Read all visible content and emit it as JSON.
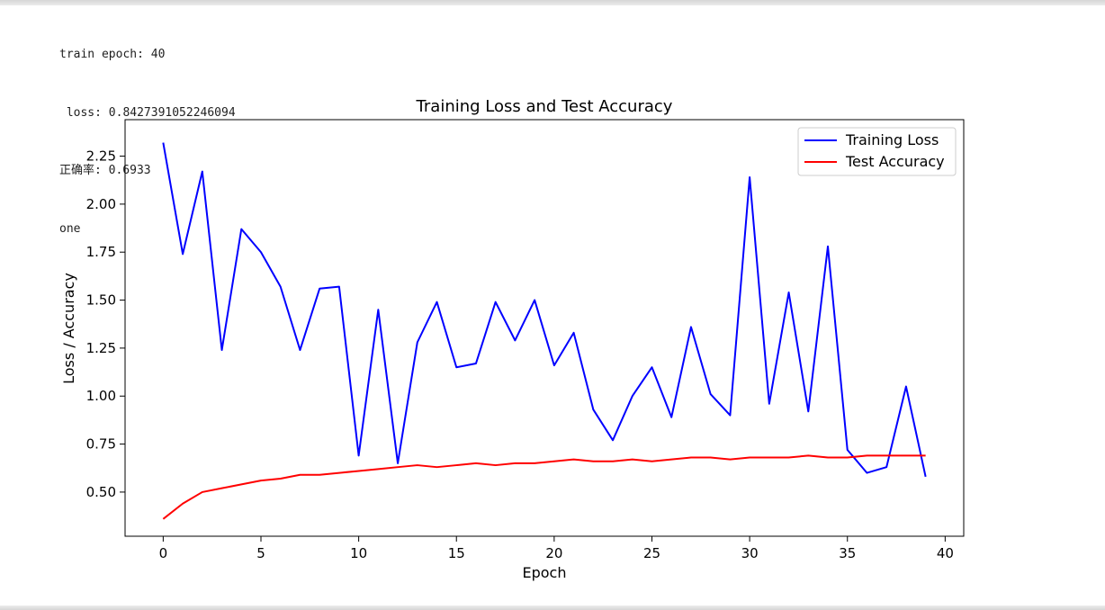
{
  "console": {
    "line1": "train epoch: 40",
    "line2": " loss: 0.8427391052246094",
    "line3": "正确率: 0.6933",
    "line4": "one"
  },
  "colors": {
    "training_loss": "#0000ff",
    "test_accuracy": "#ff0000"
  },
  "chart_data": {
    "type": "line",
    "title": "Training Loss and Test Accuracy",
    "xlabel": "Epoch",
    "ylabel": "Loss / Accuracy",
    "xlim": [
      -1.95,
      40.95
    ],
    "ylim": [
      0.27,
      2.44
    ],
    "xticks": [
      0,
      5,
      10,
      15,
      20,
      25,
      30,
      35,
      40
    ],
    "yticks": [
      0.5,
      0.75,
      1.0,
      1.25,
      1.5,
      1.75,
      2.0,
      2.25
    ],
    "ytick_labels": [
      "0.50",
      "0.75",
      "1.00",
      "1.25",
      "1.50",
      "1.75",
      "2.00",
      "2.25"
    ],
    "legend": "top-right",
    "grid": false,
    "x": [
      0,
      1,
      2,
      3,
      4,
      5,
      6,
      7,
      8,
      9,
      10,
      11,
      12,
      13,
      14,
      15,
      16,
      17,
      18,
      19,
      20,
      21,
      22,
      23,
      24,
      25,
      26,
      27,
      28,
      29,
      30,
      31,
      32,
      33,
      34,
      35,
      36,
      37,
      38,
      39
    ],
    "series": [
      {
        "name": "Training Loss",
        "color": "#0000ff",
        "values": [
          2.32,
          1.74,
          2.17,
          1.24,
          1.87,
          1.75,
          1.57,
          1.24,
          1.56,
          1.57,
          0.69,
          1.45,
          0.65,
          1.28,
          1.49,
          1.15,
          1.17,
          1.49,
          1.29,
          1.5,
          1.16,
          1.33,
          0.93,
          0.77,
          1.0,
          1.15,
          0.89,
          1.36,
          1.01,
          0.9,
          2.14,
          0.96,
          1.54,
          0.92,
          1.78,
          0.72,
          0.6,
          0.63,
          1.05,
          0.58
        ]
      },
      {
        "name": "Test Accuracy",
        "color": "#ff0000",
        "values": [
          0.36,
          0.44,
          0.5,
          0.52,
          0.54,
          0.56,
          0.57,
          0.59,
          0.59,
          0.6,
          0.61,
          0.62,
          0.63,
          0.64,
          0.63,
          0.64,
          0.65,
          0.64,
          0.65,
          0.65,
          0.66,
          0.67,
          0.66,
          0.66,
          0.67,
          0.66,
          0.67,
          0.68,
          0.68,
          0.67,
          0.68,
          0.68,
          0.68,
          0.69,
          0.68,
          0.68,
          0.69,
          0.69,
          0.69,
          0.69
        ]
      }
    ]
  }
}
